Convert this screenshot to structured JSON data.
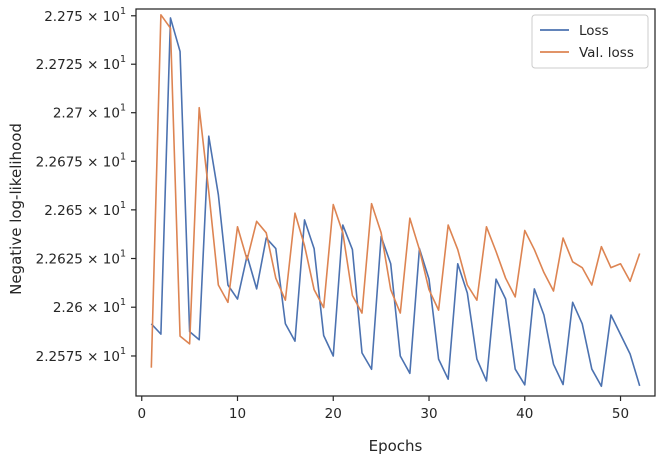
{
  "chart_data": {
    "type": "line",
    "title": "",
    "xlabel": "Epochs",
    "ylabel": "Negative log-likelihood",
    "xlim": [
      -0.6,
      53.6
    ],
    "ylim": [
      22.5545,
      22.7535
    ],
    "y_scale": "log",
    "grid": false,
    "legend_position": "top-right",
    "x_ticks": [
      0,
      10,
      20,
      30,
      40,
      50
    ],
    "x_tick_labels": [
      "0",
      "10",
      "20",
      "30",
      "40",
      "50"
    ],
    "y_ticks": [
      22.575,
      22.6,
      22.625,
      22.65,
      22.675,
      22.7,
      22.725,
      22.75
    ],
    "y_tick_labels": [
      {
        "mantissa": "2.2575",
        "base": "10",
        "exp": "1"
      },
      {
        "mantissa": "2.26",
        "base": "10",
        "exp": "1"
      },
      {
        "mantissa": "2.2625",
        "base": "10",
        "exp": "1"
      },
      {
        "mantissa": "2.265",
        "base": "10",
        "exp": "1"
      },
      {
        "mantissa": "2.2675",
        "base": "10",
        "exp": "1"
      },
      {
        "mantissa": "2.27",
        "base": "10",
        "exp": "1"
      },
      {
        "mantissa": "2.2725",
        "base": "10",
        "exp": "1"
      },
      {
        "mantissa": "2.275",
        "base": "10",
        "exp": "1"
      }
    ],
    "x": [
      1,
      2,
      3,
      4,
      5,
      6,
      7,
      8,
      9,
      10,
      11,
      12,
      13,
      14,
      15,
      16,
      17,
      18,
      19,
      20,
      21,
      22,
      23,
      24,
      25,
      26,
      27,
      28,
      29,
      30,
      31,
      32,
      33,
      34,
      35,
      36,
      37,
      38,
      39,
      40,
      41,
      42,
      43,
      44,
      45,
      46,
      47,
      48,
      49,
      50,
      51,
      52
    ],
    "series": [
      {
        "name": "Loss",
        "color": "#4c72b0",
        "values": [
          22.5915,
          22.5862,
          22.7489,
          22.7316,
          22.5875,
          22.5833,
          22.6879,
          22.6578,
          22.6114,
          22.6042,
          22.6264,
          22.6094,
          22.6355,
          22.6301,
          22.5915,
          22.5826,
          22.6448,
          22.6301,
          22.5855,
          22.575,
          22.6422,
          22.6296,
          22.5766,
          22.5682,
          22.6363,
          22.6223,
          22.575,
          22.5661,
          22.6301,
          22.6144,
          22.5734,
          22.5631,
          22.6223,
          22.6073,
          22.5734,
          22.5622,
          22.6144,
          22.6042,
          22.5683,
          22.5602,
          22.6094,
          22.596,
          22.5708,
          22.5604,
          22.6025,
          22.5915,
          22.5683,
          22.5595,
          22.596,
          22.586,
          22.576,
          22.5597
        ]
      },
      {
        "name": "Val. loss",
        "color": "#dd8452",
        "values": [
          22.569,
          22.7505,
          22.7436,
          22.5852,
          22.5812,
          22.7026,
          22.6593,
          22.6114,
          22.6025,
          22.6413,
          22.6244,
          22.6441,
          22.6382,
          22.6149,
          22.6036,
          22.6483,
          22.6316,
          22.609,
          22.5998,
          22.6527,
          22.6382,
          22.606,
          22.597,
          22.6532,
          22.6382,
          22.609,
          22.597,
          22.6457,
          22.6296,
          22.609,
          22.5985,
          22.6422,
          22.6296,
          22.6114,
          22.6036,
          22.6413,
          22.6286,
          22.6149,
          22.6053,
          22.6394,
          22.6296,
          22.6178,
          22.6083,
          22.6355,
          22.6233,
          22.6203,
          22.6114,
          22.6311,
          22.6203,
          22.6223,
          22.6133,
          22.6276
        ]
      }
    ]
  }
}
